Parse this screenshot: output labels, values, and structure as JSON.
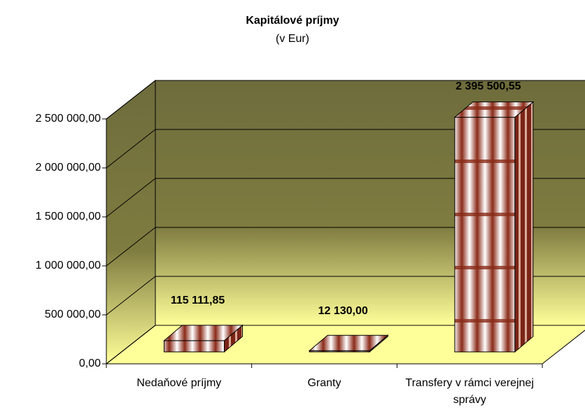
{
  "chart_data": {
    "type": "bar3d",
    "title": "Kapitálové príjmy",
    "subtitle": "(v Eur)",
    "categories": [
      "Nedaňové príjmy",
      "Granty",
      "Transfery v rámci verejnej správy"
    ],
    "values": [
      115111.85,
      12130,
      2395500.55
    ],
    "value_labels": [
      "115 111,85",
      "12 130,00",
      "2 395 500,55"
    ],
    "color": "#a0402a",
    "ylim": [
      0,
      2500000
    ],
    "yticks": [
      {
        "value": 0,
        "label": "0,00"
      },
      {
        "value": 500000,
        "label": "500 000,00"
      },
      {
        "value": 1000000,
        "label": "1 000 000,00"
      },
      {
        "value": 1500000,
        "label": "1 500 000,00"
      },
      {
        "value": 2000000,
        "label": "2 000 000,00"
      },
      {
        "value": 2500000,
        "label": "2 500 000,00"
      }
    ],
    "grid": true
  }
}
